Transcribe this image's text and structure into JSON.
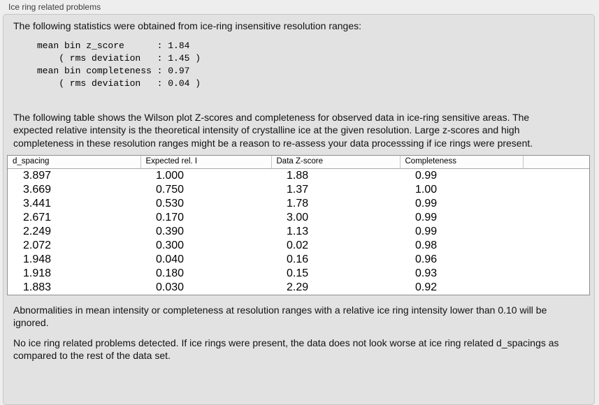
{
  "panel": {
    "group_label": "Ice ring related problems"
  },
  "intro_text": "The following statistics were obtained from ice-ring insensitive resolution ranges:",
  "stats": {
    "lines": [
      "mean bin z_score      : 1.84",
      "    ( rms deviation   : 1.45 )",
      "mean bin completeness : 0.97",
      "    ( rms deviation   : 0.04 )"
    ],
    "mean_bin_z_score": "1.84",
    "z_score_rms_deviation": "1.45",
    "mean_bin_completeness": "0.97",
    "completeness_rms_deviation": "0.04"
  },
  "description_text": "The following table shows the Wilson plot Z-scores and completeness for observed data in ice-ring sensitive areas. The expected relative intensity is the theoretical intensity of crystalline ice at the given resolution. Large z-scores and high completeness in these resolution ranges might be a reason to re-assess your data processsing if ice rings were present.",
  "table": {
    "columns": [
      "d_spacing",
      "Expected rel. I",
      "Data Z-score",
      "Completeness",
      ""
    ],
    "rows": [
      [
        "3.897",
        "1.000",
        "1.88",
        "0.99"
      ],
      [
        "3.669",
        "0.750",
        "1.37",
        "1.00"
      ],
      [
        "3.441",
        "0.530",
        "1.78",
        "0.99"
      ],
      [
        "2.671",
        "0.170",
        "3.00",
        "0.99"
      ],
      [
        "2.249",
        "0.390",
        "1.13",
        "0.99"
      ],
      [
        "2.072",
        "0.300",
        "0.02",
        "0.98"
      ],
      [
        "1.948",
        "0.040",
        "0.16",
        "0.96"
      ],
      [
        "1.918",
        "0.180",
        "0.15",
        "0.93"
      ],
      [
        "1.883",
        "0.030",
        "2.29",
        "0.92"
      ]
    ]
  },
  "notes": {
    "ignore_threshold_text": "Abnormalities in mean intensity or completeness at resolution ranges with a relative ice ring intensity lower than 0.10 will be ignored.",
    "conclusion_text": "No ice ring related problems detected. If ice rings were present, the data does not look worse at ice ring related d_spacings as compared to the rest of the data set."
  },
  "colors": {
    "page_background": "#eeeeee",
    "groupbox_background": "#e2e2e2",
    "groupbox_border": "#c6c6c6",
    "table_background": "#ffffff",
    "table_border": "#8f8f8f",
    "text": "#121212"
  }
}
